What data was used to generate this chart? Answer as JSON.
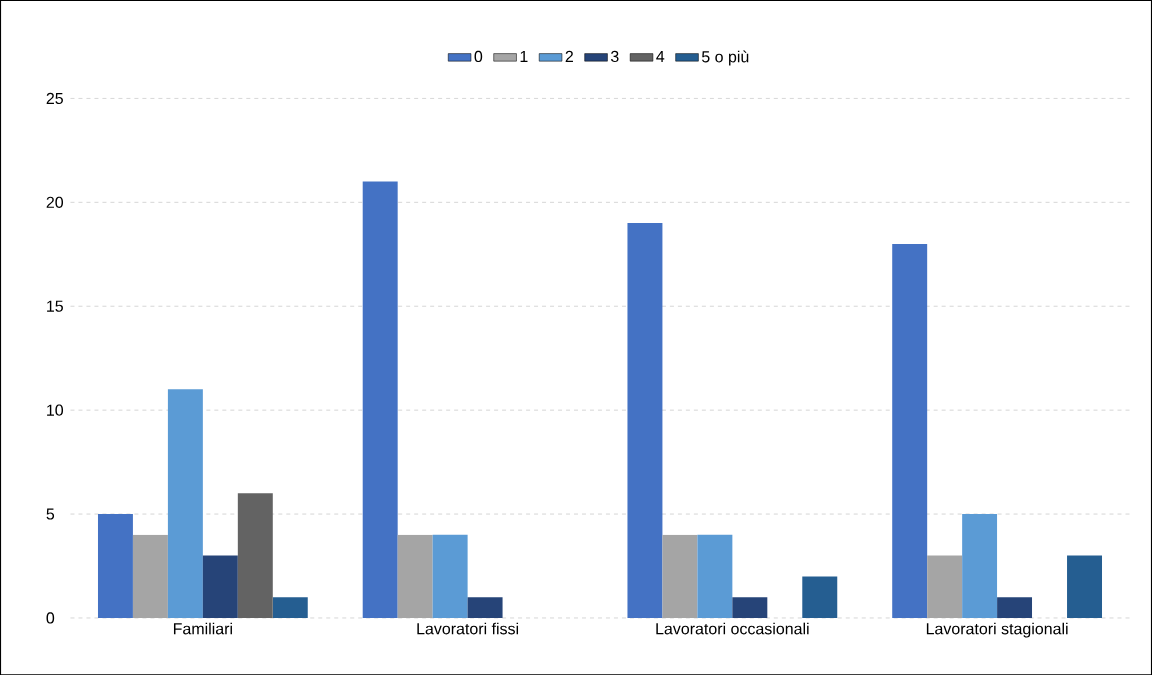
{
  "chart_data": {
    "type": "bar",
    "categories": [
      "Familiari",
      "Lavoratori fissi",
      "Lavoratori occasionali",
      "Lavoratori stagionali"
    ],
    "series": [
      {
        "name": "0",
        "color": "#4472c4",
        "values": [
          5,
          21,
          19,
          18
        ]
      },
      {
        "name": "1",
        "color": "#a5a5a5",
        "values": [
          4,
          4,
          4,
          3
        ]
      },
      {
        "name": "2",
        "color": "#5b9bd5",
        "values": [
          11,
          4,
          4,
          5
        ]
      },
      {
        "name": "3",
        "color": "#264478",
        "values": [
          3,
          1,
          1,
          1
        ]
      },
      {
        "name": "4",
        "color": "#636363",
        "values": [
          6,
          0,
          0,
          0
        ]
      },
      {
        "name": "5 o più",
        "color": "#255e91",
        "values": [
          1,
          0,
          2,
          3
        ]
      }
    ],
    "ylim": [
      0,
      25
    ],
    "yticks": [
      0,
      5,
      10,
      15,
      20,
      25
    ],
    "grid": "y",
    "legend": "top"
  }
}
